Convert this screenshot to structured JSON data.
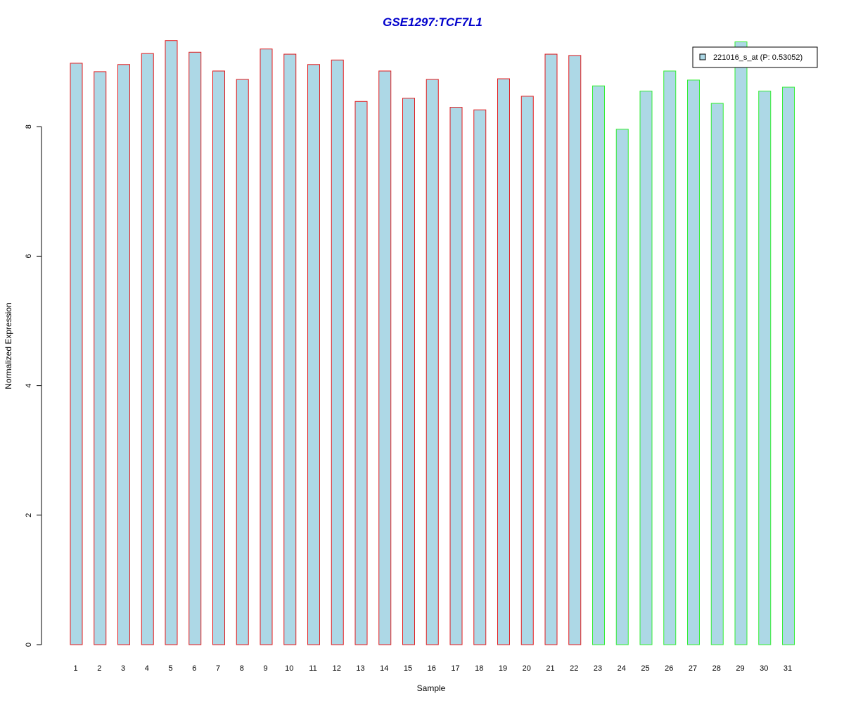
{
  "chart_data": {
    "type": "bar",
    "title": "GSE1297:TCF7L1",
    "xlabel": "Sample",
    "ylabel": "Normalized Expression",
    "categories": [
      "1",
      "2",
      "3",
      "4",
      "5",
      "6",
      "7",
      "8",
      "9",
      "10",
      "11",
      "12",
      "13",
      "14",
      "15",
      "16",
      "17",
      "18",
      "19",
      "20",
      "21",
      "22",
      "23",
      "24",
      "25",
      "26",
      "27",
      "28",
      "29",
      "30",
      "31"
    ],
    "series": [
      {
        "name": "221016_s_at (P: 0.53052)",
        "values": [
          8.98,
          8.85,
          8.96,
          9.13,
          9.33,
          9.15,
          8.86,
          8.73,
          9.2,
          9.12,
          8.96,
          9.03,
          8.39,
          8.86,
          8.44,
          8.73,
          8.3,
          8.26,
          8.74,
          8.47,
          9.12,
          9.1,
          8.63,
          7.96,
          8.55,
          8.86,
          8.72,
          8.36,
          9.31,
          8.55,
          8.61
        ]
      }
    ],
    "bar_outline_colors": [
      "#e31a1c",
      "#e31a1c",
      "#e31a1c",
      "#e31a1c",
      "#e31a1c",
      "#e31a1c",
      "#e31a1c",
      "#e31a1c",
      "#e31a1c",
      "#e31a1c",
      "#e31a1c",
      "#e31a1c",
      "#e31a1c",
      "#e31a1c",
      "#e31a1c",
      "#e31a1c",
      "#e31a1c",
      "#e31a1c",
      "#e31a1c",
      "#e31a1c",
      "#e31a1c",
      "#e31a1c",
      "#33ee33",
      "#33ee33",
      "#33ee33",
      "#33ee33",
      "#33ee33",
      "#33ee33",
      "#33ee33",
      "#33ee33",
      "#33ee33"
    ],
    "bar_fill_color": "#add8e6",
    "title_color": "#0000cc",
    "y_ticks": [
      0,
      2,
      4,
      6,
      8
    ],
    "ylim": [
      0,
      9.33
    ],
    "grid": false,
    "legend_position": "top-right"
  }
}
